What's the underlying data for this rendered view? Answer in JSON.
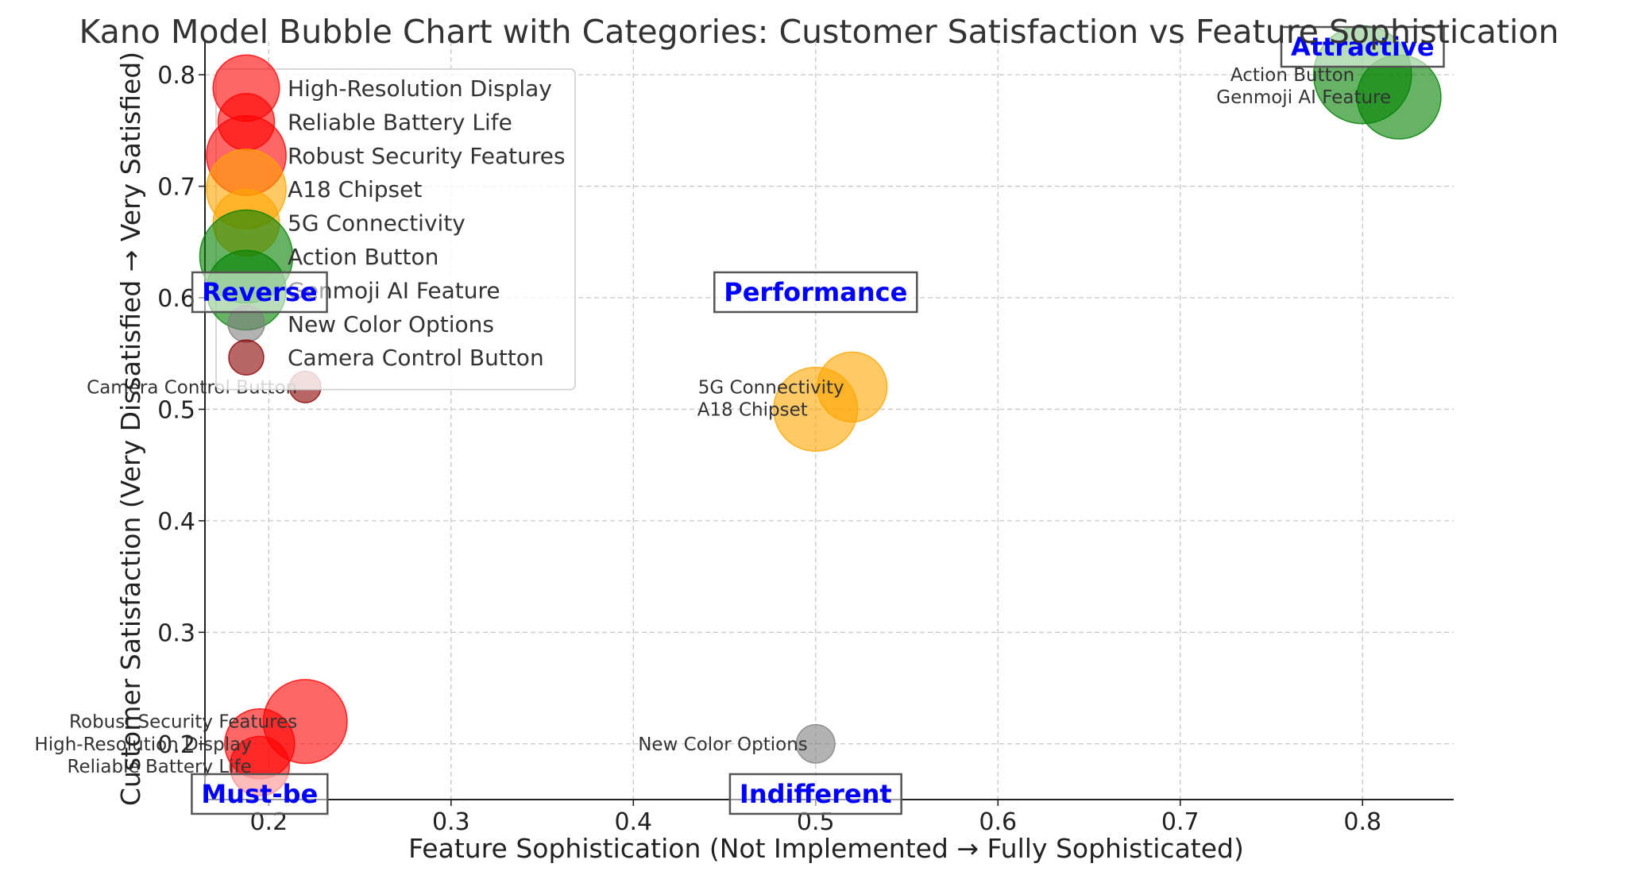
{
  "chart_data": {
    "type": "scatter",
    "title": "Kano Model Bubble Chart with Categories: Customer Satisfaction vs Feature Sophistication",
    "xlabel": "Feature Sophistication (Not Implemented → Fully Sophisticated)",
    "ylabel": "Customer Satisfaction (Very Dissatisfied → Very Satisfied)",
    "xlim": [
      0.165,
      0.85
    ],
    "ylim": [
      0.15,
      0.83
    ],
    "xticks": [
      0.2,
      0.3,
      0.4,
      0.5,
      0.6,
      0.7,
      0.8
    ],
    "xtick_labels": [
      "0.2",
      "0.3",
      "0.4",
      "0.5",
      "0.6",
      "0.7",
      "0.8"
    ],
    "yticks": [
      0.2,
      0.3,
      0.4,
      0.5,
      0.6,
      0.7,
      0.8
    ],
    "ytick_labels": [
      "0.2",
      "0.3",
      "0.4",
      "0.5",
      "0.6",
      "0.7",
      "0.8"
    ],
    "grid": true,
    "legend_position": "top-left",
    "series": [
      {
        "name": "High-Resolution Display",
        "x": 0.195,
        "y": 0.2,
        "size": 1.0,
        "color": "#ff0000",
        "alpha": 0.6
      },
      {
        "name": "Reliable Battery Life",
        "x": 0.195,
        "y": 0.18,
        "size": 0.85,
        "color": "#ff0000",
        "alpha": 0.6
      },
      {
        "name": "Robust Security Features",
        "x": 0.22,
        "y": 0.22,
        "size": 1.2,
        "color": "#ff0000",
        "alpha": 0.6
      },
      {
        "name": "A18 Chipset",
        "x": 0.5,
        "y": 0.5,
        "size": 1.2,
        "color": "#ffa500",
        "alpha": 0.6
      },
      {
        "name": "5G Connectivity",
        "x": 0.52,
        "y": 0.52,
        "size": 1.0,
        "color": "#ffa500",
        "alpha": 0.6
      },
      {
        "name": "Action Button",
        "x": 0.8,
        "y": 0.8,
        "size": 1.4,
        "color": "#008000",
        "alpha": 0.6
      },
      {
        "name": "Genmoji AI Feature",
        "x": 0.82,
        "y": 0.78,
        "size": 1.2,
        "color": "#008000",
        "alpha": 0.6
      },
      {
        "name": "New Color Options",
        "x": 0.5,
        "y": 0.2,
        "size": 0.55,
        "color": "#808080",
        "alpha": 0.6
      },
      {
        "name": "Camera Control Button",
        "x": 0.22,
        "y": 0.52,
        "size": 0.45,
        "color": "#8b0000",
        "alpha": 0.6
      }
    ],
    "categories": [
      {
        "name": "Attractive",
        "x": 0.8,
        "y": 0.825
      },
      {
        "name": "Performance",
        "x": 0.5,
        "y": 0.605
      },
      {
        "name": "Reverse",
        "x": 0.195,
        "y": 0.605
      },
      {
        "name": "Must-be",
        "x": 0.195,
        "y": 0.155
      },
      {
        "name": "Indifferent",
        "x": 0.5,
        "y": 0.155
      }
    ],
    "category_text_color": "#0000ff"
  }
}
